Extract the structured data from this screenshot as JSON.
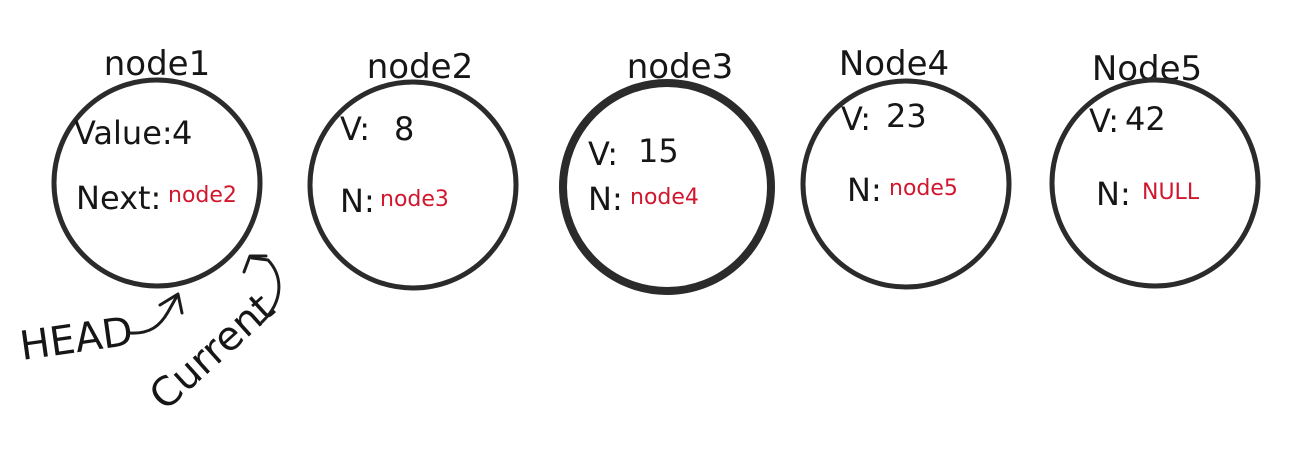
{
  "nodes": [
    {
      "title": "node1",
      "value_label": "Value:",
      "value": "4",
      "next_label": "Next:",
      "next": "node2"
    },
    {
      "title": "node2",
      "value_label": "V:",
      "value": "8",
      "next_label": "N:",
      "next": "node3"
    },
    {
      "title": "node3",
      "value_label": "V:",
      "value": "15",
      "next_label": "N:",
      "next": "node4"
    },
    {
      "title": "Node4",
      "value_label": "V:",
      "value": "23",
      "next_label": "N:",
      "next": "node5"
    },
    {
      "title": "Node5",
      "value_label": "V:",
      "value": "42",
      "next_label": "N:",
      "next": "NULL"
    }
  ],
  "pointers": {
    "head": "HEAD",
    "current": "Current"
  },
  "colors": {
    "ink": "#161616",
    "reference": "#d1172e"
  }
}
